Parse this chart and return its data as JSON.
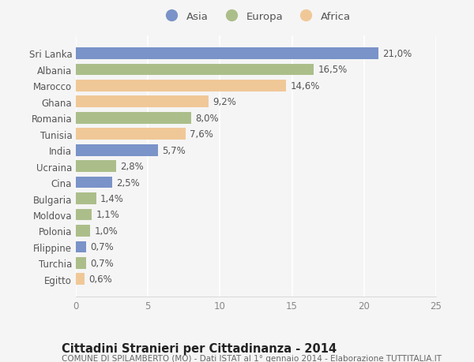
{
  "categories": [
    "Sri Lanka",
    "Albania",
    "Marocco",
    "Ghana",
    "Romania",
    "Tunisia",
    "India",
    "Ucraina",
    "Cina",
    "Bulgaria",
    "Moldova",
    "Polonia",
    "Filippine",
    "Turchia",
    "Egitto"
  ],
  "values": [
    21.0,
    16.5,
    14.6,
    9.2,
    8.0,
    7.6,
    5.7,
    2.8,
    2.5,
    1.4,
    1.1,
    1.0,
    0.7,
    0.7,
    0.6
  ],
  "labels": [
    "21,0%",
    "16,5%",
    "14,6%",
    "9,2%",
    "8,0%",
    "7,6%",
    "5,7%",
    "2,8%",
    "2,5%",
    "1,4%",
    "1,1%",
    "1,0%",
    "0,7%",
    "0,7%",
    "0,6%"
  ],
  "continents": [
    "Asia",
    "Europa",
    "Africa",
    "Africa",
    "Europa",
    "Africa",
    "Asia",
    "Europa",
    "Asia",
    "Europa",
    "Europa",
    "Europa",
    "Asia",
    "Europa",
    "Africa"
  ],
  "colors": {
    "Asia": "#7a93c8",
    "Europa": "#abbe8a",
    "Africa": "#f0c898"
  },
  "legend_colors": {
    "Asia": "#7a93c8",
    "Europa": "#abbe8a",
    "Africa": "#f0c898"
  },
  "title": "Cittadini Stranieri per Cittadinanza - 2014",
  "subtitle": "COMUNE DI SPILAMBERTO (MO) - Dati ISTAT al 1° gennaio 2014 - Elaborazione TUTTITALIA.IT",
  "xlim": [
    0,
    25
  ],
  "xticks": [
    0,
    5,
    10,
    15,
    20,
    25
  ],
  "background_color": "#f5f5f5",
  "bar_height": 0.72,
  "label_fontsize": 8.5,
  "tick_fontsize": 8.5,
  "title_fontsize": 10.5,
  "subtitle_fontsize": 7.5,
  "legend_fontsize": 9.5
}
